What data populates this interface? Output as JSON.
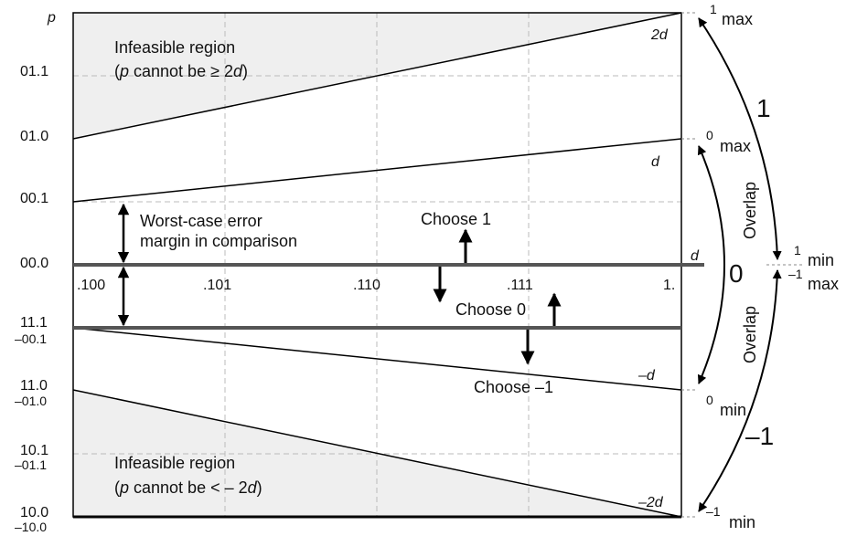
{
  "axis": {
    "p_label": "p",
    "y_ticks": [
      {
        "primary": "01.1"
      },
      {
        "primary": "01.0"
      },
      {
        "primary": "00.1"
      },
      {
        "primary": "00.0"
      },
      {
        "primary": "11.1",
        "secondary": "–00.1"
      },
      {
        "primary": "11.0",
        "secondary": "–01.0"
      },
      {
        "primary": "10.1",
        "secondary": "–01.1"
      },
      {
        "primary": "10.0",
        "secondary": "–10.0"
      }
    ],
    "x_ticks": [
      ".100",
      ".101",
      ".110",
      ".111",
      "1."
    ]
  },
  "regions": {
    "upper_title": "Infeasible region",
    "upper_note_pre": "(",
    "upper_note_var": "p",
    "upper_note_mid": " cannot be ≥ 2",
    "upper_note_var2": "d",
    "upper_note_post": ")",
    "lower_title": "Infeasible region",
    "lower_note_pre": "(",
    "lower_note_var": "p",
    "lower_note_mid": " cannot be < – 2",
    "lower_note_var2": "d",
    "lower_note_post": ")"
  },
  "line_labels": {
    "two_d": "2d",
    "d_upper": "d",
    "d_axis": "d",
    "neg_d": "–d",
    "neg_two_d": "–2d"
  },
  "annotations": {
    "margin_line1": "Worst-case error",
    "margin_line2": "margin in comparison",
    "choose_1": "Choose 1",
    "choose_0": "Choose 0",
    "choose_neg1": "Choose –1"
  },
  "right_scale": {
    "one_max_sup": "1",
    "one_max_sub": "max",
    "zero_max_sup": "0",
    "zero_max_sub": "max",
    "one_min_sup": "1",
    "one_min_sub": "min",
    "neg1_max_sup": "–1",
    "neg1_max_sub": "max",
    "zero_min_sup": "0",
    "zero_min_sub": "min",
    "neg1_min_sup": "–1",
    "neg1_min_sub": "min",
    "digit_1": "1",
    "digit_0": "0",
    "digit_neg1": "–1",
    "overlap_upper": "Overlap",
    "overlap_lower": "Overlap"
  },
  "colors": {
    "infeasible_fill": "#efefef",
    "grid": "#bbbbbb",
    "thick_line": "#555555"
  }
}
